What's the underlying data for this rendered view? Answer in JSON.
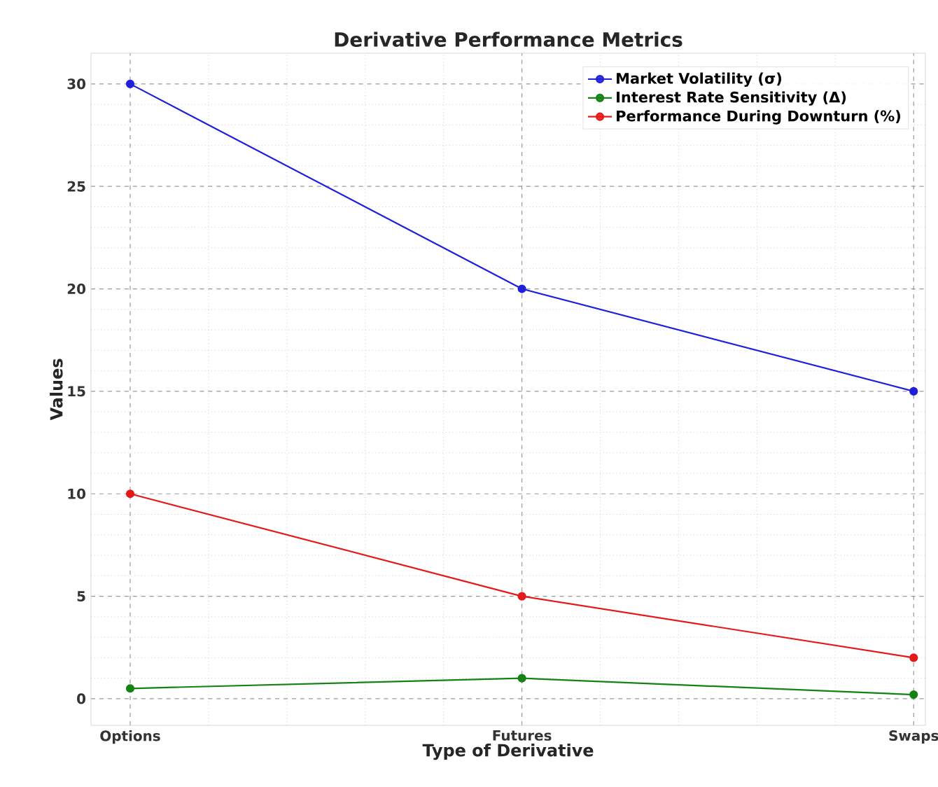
{
  "chart_data": {
    "type": "line",
    "title": "Derivative Performance Metrics",
    "xlabel": "Type of Derivative",
    "ylabel": "Values",
    "categories": [
      "Options",
      "Futures",
      "Swaps"
    ],
    "series": [
      {
        "name": "Market Volatility (σ)",
        "color": "#1f1fdc",
        "values": [
          30,
          20,
          15
        ]
      },
      {
        "name": "Interest Rate Sensitivity (Δ)",
        "color": "#148214",
        "values": [
          0.5,
          1,
          0.2
        ]
      },
      {
        "name": "Performance During Downturn (%)",
        "color": "#e41a1a",
        "values": [
          10,
          5,
          2
        ]
      }
    ],
    "ylim": [
      -1.3,
      31.5
    ],
    "yticks": [
      0,
      5,
      10,
      15,
      20,
      25,
      30
    ],
    "grid": true,
    "legend": "top right",
    "marker": "circle",
    "line_style": "solid"
  }
}
